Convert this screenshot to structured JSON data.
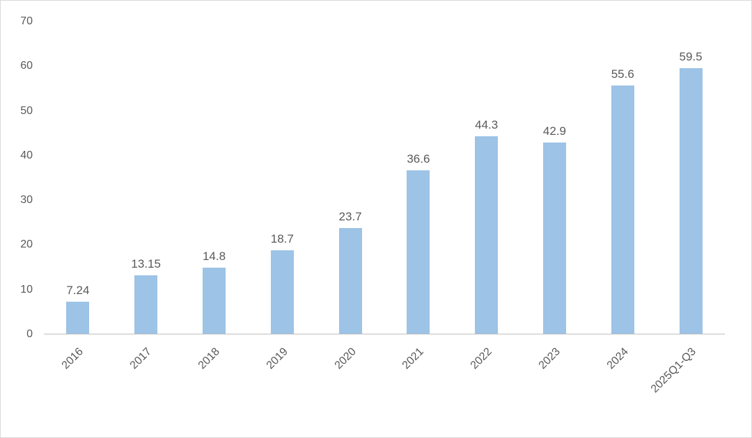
{
  "chart_data": {
    "type": "bar",
    "categories": [
      "2016",
      "2017",
      "2018",
      "2019",
      "2020",
      "2021",
      "2022",
      "2023",
      "2024",
      "2025Q1-Q3"
    ],
    "values": [
      7.24,
      13.15,
      14.8,
      18.7,
      23.7,
      36.6,
      44.3,
      42.9,
      55.6,
      59.5
    ],
    "value_labels": [
      "7.24",
      "13.15",
      "14.8",
      "18.7",
      "23.7",
      "36.6",
      "44.3",
      "42.9",
      "55.6",
      "59.5"
    ],
    "title": "",
    "xlabel": "",
    "ylabel": "",
    "ylim": [
      0,
      70
    ],
    "yticks": [
      0,
      10,
      20,
      30,
      40,
      50,
      60,
      70
    ],
    "grid": false,
    "legend_position": "none",
    "colors": {
      "bar": "#9DC3E6",
      "label": "#595959",
      "axis": "#BFBFBF"
    }
  }
}
